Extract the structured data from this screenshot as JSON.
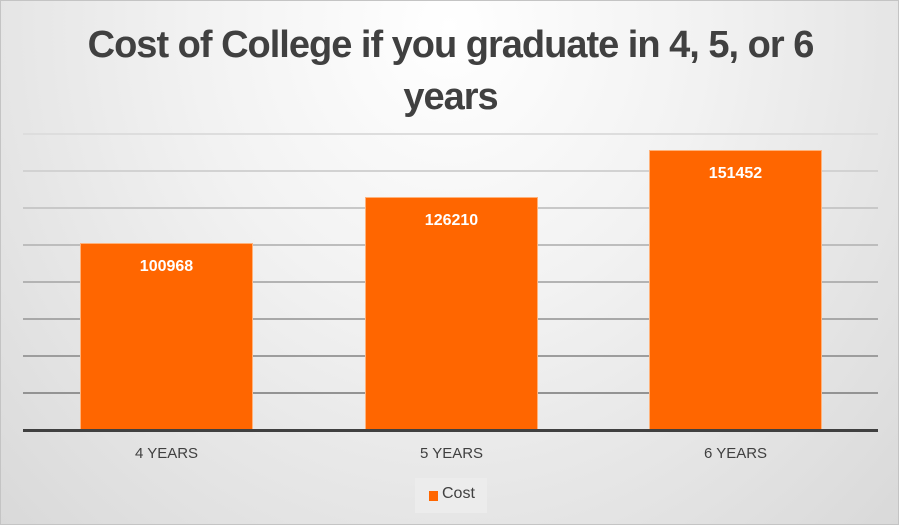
{
  "chart_data": {
    "type": "bar",
    "title": "Cost of College if you graduate in 4, 5, or 6 years",
    "categories": [
      "4 YEARS",
      "5 YEARS",
      "6 YEARS"
    ],
    "series": [
      {
        "name": "Cost",
        "values": [
          100968,
          126210,
          151452
        ],
        "color": "#ff6600"
      }
    ],
    "values": [
      100968,
      126210,
      151452
    ],
    "xlabel": "",
    "ylabel": "",
    "ylim": [
      0,
      160000
    ],
    "grid": true,
    "y_axis_labels_visible": false,
    "data_labels": [
      "100968",
      "126210",
      "151452"
    ],
    "legend": {
      "position": "bottom",
      "entries": [
        "Cost"
      ]
    }
  },
  "title_line1": "Cost of College if you graduate in 4, 5, or 6",
  "title_line2": "years",
  "colors": {
    "bar": "#ff6600",
    "text": "#404040",
    "axis": "#404040"
  }
}
